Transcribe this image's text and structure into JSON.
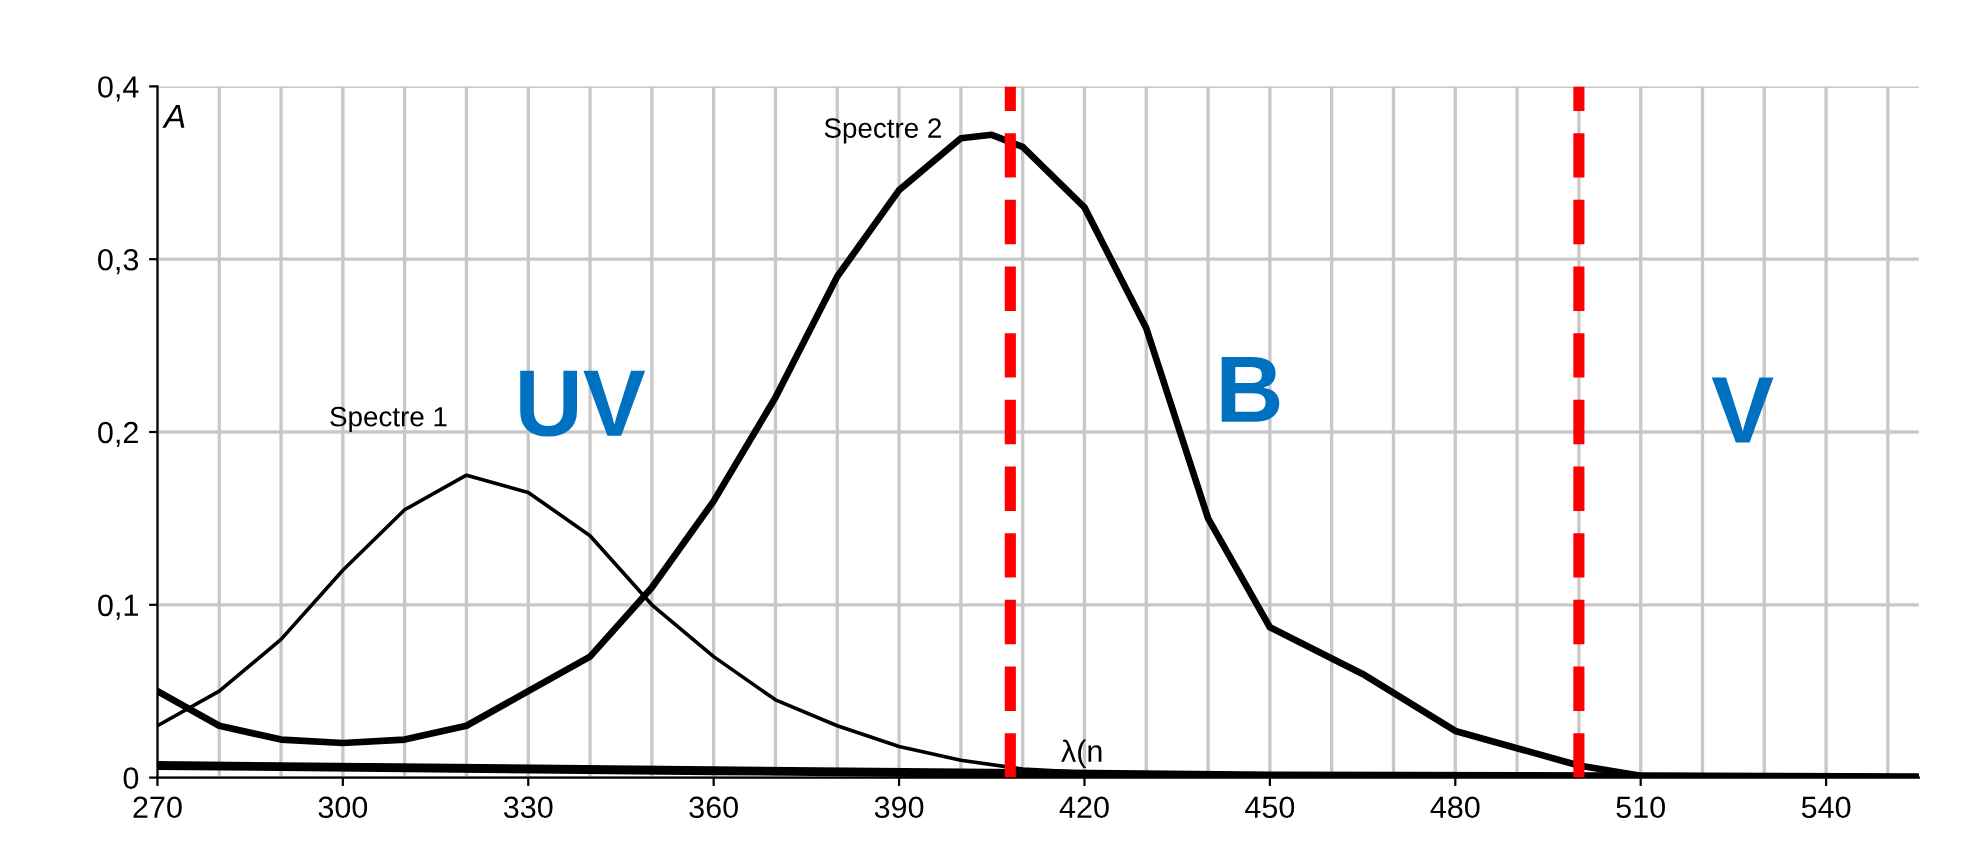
{
  "chart_data": {
    "type": "line",
    "xlabel": "λ(n",
    "ylabel": "A",
    "series": [
      {
        "name": "Spectre 1",
        "color": "#000000",
        "x": [
          270,
          280,
          290,
          300,
          310,
          320,
          330,
          340,
          350,
          360,
          370,
          380,
          390,
          400,
          410,
          420,
          450,
          555
        ],
        "values": [
          0.03,
          0.05,
          0.08,
          0.12,
          0.155,
          0.175,
          0.165,
          0.14,
          0.1,
          0.07,
          0.045,
          0.03,
          0.018,
          0.01,
          0.005,
          0.003,
          0.002,
          0.0
        ]
      },
      {
        "name": "Spectre 2",
        "color": "#000000",
        "x": [
          270,
          280,
          290,
          300,
          310,
          320,
          330,
          340,
          350,
          360,
          370,
          380,
          390,
          400,
          405,
          410,
          420,
          430,
          440,
          450,
          465,
          480,
          500,
          510,
          555
        ],
        "values": [
          0.05,
          0.03,
          0.022,
          0.02,
          0.022,
          0.03,
          0.05,
          0.07,
          0.11,
          0.16,
          0.22,
          0.29,
          0.34,
          0.37,
          0.372,
          0.365,
          0.33,
          0.26,
          0.15,
          0.087,
          0.06,
          0.027,
          0.007,
          0.001,
          0.0
        ]
      },
      {
        "color": "#000000",
        "x": [
          270,
          360,
          450,
          555
        ],
        "values": [
          0.007,
          0.004,
          0.001,
          0.0
        ]
      }
    ],
    "xlim": [
      270,
      555
    ],
    "ylim": [
      0,
      0.4
    ],
    "xticks": [
      270,
      300,
      330,
      360,
      390,
      420,
      450,
      480,
      510,
      540
    ],
    "yticks": [
      0,
      {
        "value": 0.1,
        "label": "0,1"
      },
      {
        "value": 0.2,
        "label": "0,2"
      },
      {
        "value": 0.3,
        "label": "0,3"
      },
      {
        "value": 0.4,
        "label": "0,4"
      }
    ],
    "grid": true,
    "marker": "none",
    "line_style": "solid",
    "ref_lines": [
      {
        "axis": "x",
        "value": 408,
        "color": "#ff0000",
        "line_style": "dashed"
      },
      {
        "axis": "x",
        "value": 500,
        "color": "#ff0000",
        "line_style": "dashed"
      }
    ],
    "annotations": [
      "UV",
      "B",
      "V"
    ]
  }
}
